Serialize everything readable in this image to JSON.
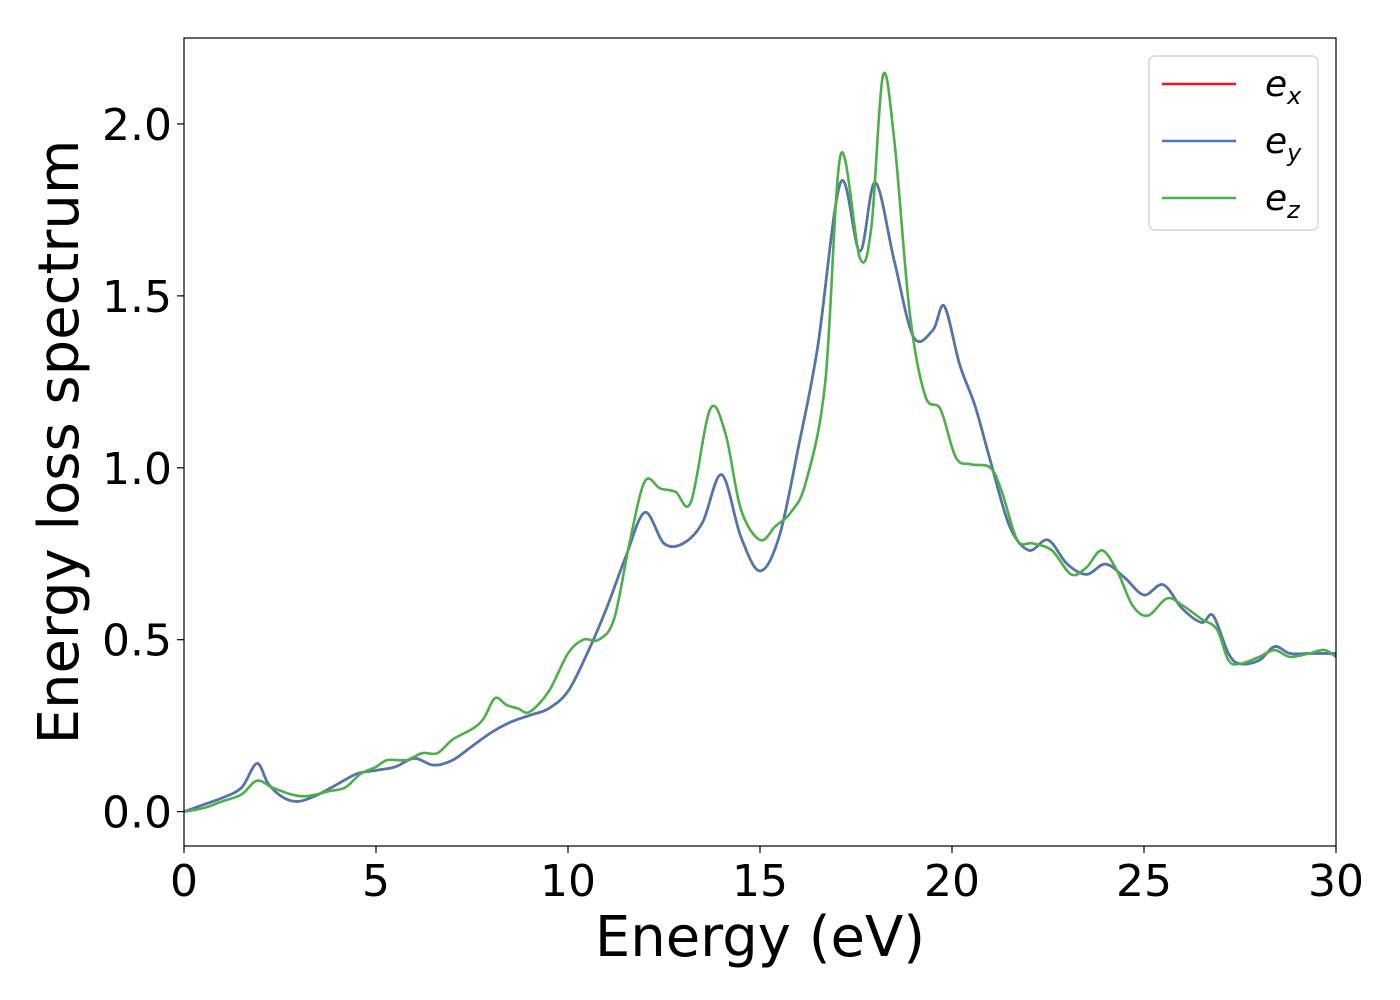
{
  "chart_data": {
    "type": "line",
    "xlabel": "Energy (eV)",
    "ylabel": "Energy loss spectrum",
    "xlim": [
      0,
      30
    ],
    "ylim": [
      -0.1,
      2.25
    ],
    "x_ticks": [
      0,
      5,
      10,
      15,
      20,
      25,
      30
    ],
    "x_tick_labels": [
      "0",
      "5",
      "10",
      "15",
      "20",
      "25",
      "30"
    ],
    "y_ticks": [
      0.0,
      0.5,
      1.0,
      1.5,
      2.0
    ],
    "y_tick_labels": [
      "0.0",
      "0.5",
      "1.0",
      "1.5",
      "2.0"
    ],
    "grid": false,
    "legend_position": "top-right",
    "series": [
      {
        "name": "e_x",
        "legend_base": "e",
        "legend_sub": "x",
        "color": "#e41a1c",
        "points": [
          [
            0,
            0
          ],
          [
            0.5,
            0.02
          ],
          [
            1.0,
            0.04
          ],
          [
            1.5,
            0.07
          ],
          [
            1.9,
            0.14
          ],
          [
            2.2,
            0.08
          ],
          [
            2.6,
            0.04
          ],
          [
            3.0,
            0.03
          ],
          [
            3.5,
            0.05
          ],
          [
            4.0,
            0.08
          ],
          [
            4.5,
            0.11
          ],
          [
            5.0,
            0.12
          ],
          [
            5.5,
            0.13
          ],
          [
            6.0,
            0.155
          ],
          [
            6.5,
            0.135
          ],
          [
            7.0,
            0.15
          ],
          [
            7.5,
            0.19
          ],
          [
            8.0,
            0.23
          ],
          [
            8.5,
            0.26
          ],
          [
            9.0,
            0.28
          ],
          [
            9.5,
            0.3
          ],
          [
            10.0,
            0.35
          ],
          [
            10.5,
            0.46
          ],
          [
            11.0,
            0.59
          ],
          [
            11.5,
            0.74
          ],
          [
            12.0,
            0.87
          ],
          [
            12.5,
            0.78
          ],
          [
            13.0,
            0.78
          ],
          [
            13.5,
            0.84
          ],
          [
            14.0,
            0.98
          ],
          [
            14.5,
            0.8
          ],
          [
            15.0,
            0.7
          ],
          [
            15.5,
            0.8
          ],
          [
            16.0,
            1.06
          ],
          [
            16.5,
            1.35
          ],
          [
            17.1,
            1.83
          ],
          [
            17.6,
            1.63
          ],
          [
            18.0,
            1.83
          ],
          [
            18.5,
            1.6
          ],
          [
            19.0,
            1.38
          ],
          [
            19.5,
            1.4
          ],
          [
            19.8,
            1.47
          ],
          [
            20.2,
            1.3
          ],
          [
            20.6,
            1.18
          ],
          [
            21.0,
            1.02
          ],
          [
            21.5,
            0.83
          ],
          [
            22.0,
            0.76
          ],
          [
            22.5,
            0.79
          ],
          [
            23.0,
            0.72
          ],
          [
            23.5,
            0.69
          ],
          [
            24.0,
            0.72
          ],
          [
            24.5,
            0.68
          ],
          [
            25.0,
            0.63
          ],
          [
            25.5,
            0.66
          ],
          [
            26.0,
            0.59
          ],
          [
            26.5,
            0.55
          ],
          [
            26.8,
            0.57
          ],
          [
            27.2,
            0.46
          ],
          [
            27.5,
            0.43
          ],
          [
            28.0,
            0.44
          ],
          [
            28.4,
            0.48
          ],
          [
            28.8,
            0.46
          ],
          [
            29.3,
            0.46
          ],
          [
            29.7,
            0.46
          ],
          [
            30.0,
            0.46
          ]
        ]
      },
      {
        "name": "e_y",
        "legend_base": "e",
        "legend_sub": "y",
        "color": "#4a78b0",
        "points": [
          [
            0,
            0
          ],
          [
            0.5,
            0.02
          ],
          [
            1.0,
            0.04
          ],
          [
            1.5,
            0.07
          ],
          [
            1.9,
            0.14
          ],
          [
            2.2,
            0.08
          ],
          [
            2.6,
            0.04
          ],
          [
            3.0,
            0.03
          ],
          [
            3.5,
            0.05
          ],
          [
            4.0,
            0.08
          ],
          [
            4.5,
            0.11
          ],
          [
            5.0,
            0.12
          ],
          [
            5.5,
            0.13
          ],
          [
            6.0,
            0.155
          ],
          [
            6.5,
            0.135
          ],
          [
            7.0,
            0.15
          ],
          [
            7.5,
            0.19
          ],
          [
            8.0,
            0.23
          ],
          [
            8.5,
            0.26
          ],
          [
            9.0,
            0.28
          ],
          [
            9.5,
            0.3
          ],
          [
            10.0,
            0.35
          ],
          [
            10.5,
            0.46
          ],
          [
            11.0,
            0.59
          ],
          [
            11.5,
            0.74
          ],
          [
            12.0,
            0.87
          ],
          [
            12.5,
            0.78
          ],
          [
            13.0,
            0.78
          ],
          [
            13.5,
            0.84
          ],
          [
            14.0,
            0.98
          ],
          [
            14.5,
            0.8
          ],
          [
            15.0,
            0.7
          ],
          [
            15.5,
            0.8
          ],
          [
            16.0,
            1.06
          ],
          [
            16.5,
            1.35
          ],
          [
            17.1,
            1.83
          ],
          [
            17.6,
            1.63
          ],
          [
            18.0,
            1.83
          ],
          [
            18.5,
            1.6
          ],
          [
            19.0,
            1.38
          ],
          [
            19.5,
            1.4
          ],
          [
            19.8,
            1.47
          ],
          [
            20.2,
            1.3
          ],
          [
            20.6,
            1.18
          ],
          [
            21.0,
            1.02
          ],
          [
            21.5,
            0.83
          ],
          [
            22.0,
            0.76
          ],
          [
            22.5,
            0.79
          ],
          [
            23.0,
            0.72
          ],
          [
            23.5,
            0.69
          ],
          [
            24.0,
            0.72
          ],
          [
            24.5,
            0.68
          ],
          [
            25.0,
            0.63
          ],
          [
            25.5,
            0.66
          ],
          [
            26.0,
            0.59
          ],
          [
            26.5,
            0.55
          ],
          [
            26.8,
            0.57
          ],
          [
            27.2,
            0.46
          ],
          [
            27.5,
            0.43
          ],
          [
            28.0,
            0.44
          ],
          [
            28.4,
            0.48
          ],
          [
            28.8,
            0.46
          ],
          [
            29.3,
            0.46
          ],
          [
            29.7,
            0.46
          ],
          [
            30.0,
            0.46
          ]
        ]
      },
      {
        "name": "e_z",
        "legend_base": "e",
        "legend_sub": "z",
        "color": "#4daf4a",
        "points": [
          [
            0,
            0
          ],
          [
            0.5,
            0.01
          ],
          [
            1.0,
            0.03
          ],
          [
            1.5,
            0.05
          ],
          [
            1.9,
            0.09
          ],
          [
            2.3,
            0.07
          ],
          [
            2.8,
            0.05
          ],
          [
            3.2,
            0.045
          ],
          [
            3.8,
            0.06
          ],
          [
            4.2,
            0.07
          ],
          [
            4.6,
            0.11
          ],
          [
            5.0,
            0.13
          ],
          [
            5.3,
            0.15
          ],
          [
            5.8,
            0.15
          ],
          [
            6.2,
            0.17
          ],
          [
            6.6,
            0.17
          ],
          [
            7.0,
            0.21
          ],
          [
            7.5,
            0.24
          ],
          [
            7.8,
            0.27
          ],
          [
            8.1,
            0.33
          ],
          [
            8.4,
            0.31
          ],
          [
            8.7,
            0.3
          ],
          [
            9.0,
            0.29
          ],
          [
            9.5,
            0.35
          ],
          [
            10.0,
            0.46
          ],
          [
            10.4,
            0.5
          ],
          [
            10.8,
            0.5
          ],
          [
            11.2,
            0.56
          ],
          [
            11.6,
            0.78
          ],
          [
            12.0,
            0.96
          ],
          [
            12.4,
            0.94
          ],
          [
            12.8,
            0.93
          ],
          [
            13.2,
            0.9
          ],
          [
            13.7,
            1.17
          ],
          [
            14.1,
            1.1
          ],
          [
            14.5,
            0.88
          ],
          [
            15.0,
            0.79
          ],
          [
            15.4,
            0.83
          ],
          [
            15.8,
            0.87
          ],
          [
            16.2,
            0.96
          ],
          [
            16.7,
            1.25
          ],
          [
            17.1,
            1.91
          ],
          [
            17.6,
            1.61
          ],
          [
            17.9,
            1.7
          ],
          [
            18.2,
            2.14
          ],
          [
            18.5,
            1.95
          ],
          [
            18.9,
            1.45
          ],
          [
            19.3,
            1.21
          ],
          [
            19.7,
            1.17
          ],
          [
            20.1,
            1.03
          ],
          [
            20.5,
            1.01
          ],
          [
            21.0,
            1.0
          ],
          [
            21.3,
            0.93
          ],
          [
            21.7,
            0.79
          ],
          [
            22.1,
            0.78
          ],
          [
            22.6,
            0.76
          ],
          [
            23.1,
            0.69
          ],
          [
            23.5,
            0.71
          ],
          [
            23.9,
            0.76
          ],
          [
            24.3,
            0.7
          ],
          [
            24.7,
            0.6
          ],
          [
            25.1,
            0.57
          ],
          [
            25.6,
            0.62
          ],
          [
            26.0,
            0.6
          ],
          [
            26.5,
            0.56
          ],
          [
            26.9,
            0.53
          ],
          [
            27.2,
            0.44
          ],
          [
            27.5,
            0.43
          ],
          [
            28.0,
            0.45
          ],
          [
            28.4,
            0.47
          ],
          [
            28.8,
            0.45
          ],
          [
            29.3,
            0.46
          ],
          [
            29.7,
            0.47
          ],
          [
            30.0,
            0.45
          ]
        ]
      }
    ]
  }
}
